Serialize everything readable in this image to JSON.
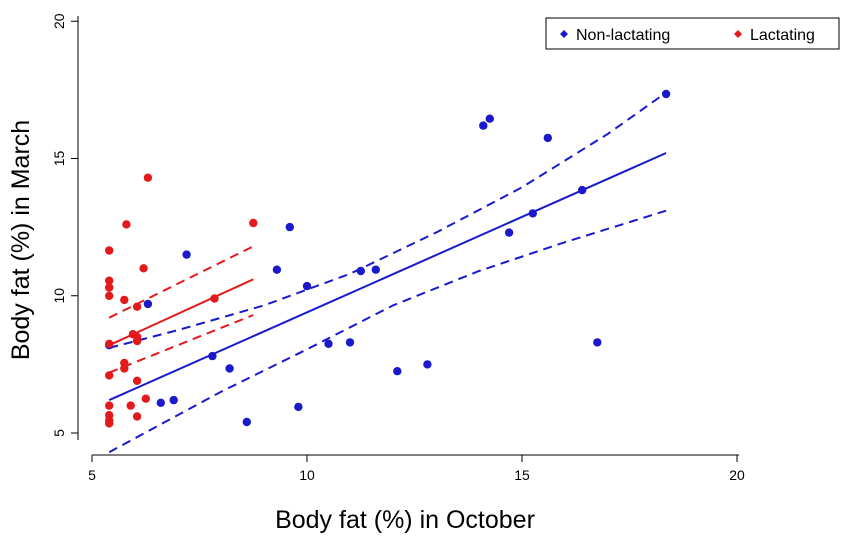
{
  "chart_data": {
    "type": "scatter",
    "xlabel": "Body fat (%) in October",
    "ylabel": "Body fat (%) in March",
    "xlim": [
      5,
      20
    ],
    "ylim": [
      4.5,
      20
    ],
    "xticks": [
      "5",
      "10",
      "15",
      "20"
    ],
    "yticks": [
      "5",
      "10",
      "15",
      "20"
    ],
    "legend": {
      "position": "top-right"
    },
    "series": [
      {
        "name": "Non-lactating",
        "color": "#1a1acc",
        "points": [
          [
            5.4,
            8.2
          ],
          [
            6.3,
            9.7
          ],
          [
            6.6,
            6.1
          ],
          [
            6.9,
            6.2
          ],
          [
            7.2,
            11.5
          ],
          [
            7.8,
            7.8
          ],
          [
            8.2,
            7.35
          ],
          [
            8.6,
            5.4
          ],
          [
            9.3,
            10.95
          ],
          [
            9.6,
            12.5
          ],
          [
            9.8,
            5.95
          ],
          [
            10.0,
            10.35
          ],
          [
            10.5,
            8.25
          ],
          [
            11.0,
            8.3
          ],
          [
            11.25,
            10.9
          ],
          [
            11.6,
            10.95
          ],
          [
            12.1,
            7.25
          ],
          [
            12.8,
            7.5
          ],
          [
            14.1,
            16.2
          ],
          [
            14.25,
            16.45
          ],
          [
            14.7,
            12.3
          ],
          [
            15.25,
            13.0
          ],
          [
            15.6,
            15.75
          ],
          [
            16.4,
            13.85
          ],
          [
            16.75,
            8.3
          ],
          [
            18.35,
            17.35
          ]
        ],
        "fit": {
          "x": [
            5.4,
            18.35
          ],
          "y": [
            6.2,
            15.2
          ]
        },
        "ci_lower": {
          "x": [
            5.4,
            8.0,
            10.0,
            12.0,
            14.0,
            16.0,
            18.35
          ],
          "y": [
            4.3,
            6.5,
            8.05,
            9.65,
            10.9,
            11.95,
            13.1
          ]
        },
        "ci_upper": {
          "x": [
            5.4,
            7.0,
            9.0,
            11.0,
            13.0,
            15.0,
            17.0,
            18.35
          ],
          "y": [
            8.1,
            8.75,
            9.65,
            10.8,
            12.3,
            13.95,
            15.9,
            17.4
          ]
        }
      },
      {
        "name": "Lactating",
        "color": "#e31a1c",
        "points": [
          [
            5.4,
            11.65
          ],
          [
            5.4,
            10.55
          ],
          [
            5.4,
            10.3
          ],
          [
            5.4,
            10.0
          ],
          [
            5.4,
            8.25
          ],
          [
            5.4,
            7.1
          ],
          [
            5.4,
            6.0
          ],
          [
            5.4,
            5.65
          ],
          [
            5.4,
            5.45
          ],
          [
            5.4,
            5.35
          ],
          [
            5.75,
            9.85
          ],
          [
            5.75,
            7.55
          ],
          [
            5.75,
            7.35
          ],
          [
            5.8,
            12.6
          ],
          [
            5.9,
            6.0
          ],
          [
            5.95,
            8.6
          ],
          [
            6.05,
            8.5
          ],
          [
            6.05,
            8.35
          ],
          [
            6.05,
            9.6
          ],
          [
            6.05,
            6.9
          ],
          [
            6.05,
            5.6
          ],
          [
            6.2,
            11.0
          ],
          [
            6.25,
            6.25
          ],
          [
            6.3,
            14.3
          ],
          [
            7.85,
            9.9
          ],
          [
            8.75,
            12.65
          ]
        ],
        "fit": {
          "x": [
            5.4,
            8.75
          ],
          "y": [
            8.2,
            10.6
          ]
        },
        "ci_lower": {
          "x": [
            5.4,
            8.75
          ],
          "y": [
            7.2,
            9.3
          ]
        },
        "ci_upper": {
          "x": [
            5.4,
            8.75
          ],
          "y": [
            9.2,
            11.8
          ]
        }
      }
    ]
  }
}
